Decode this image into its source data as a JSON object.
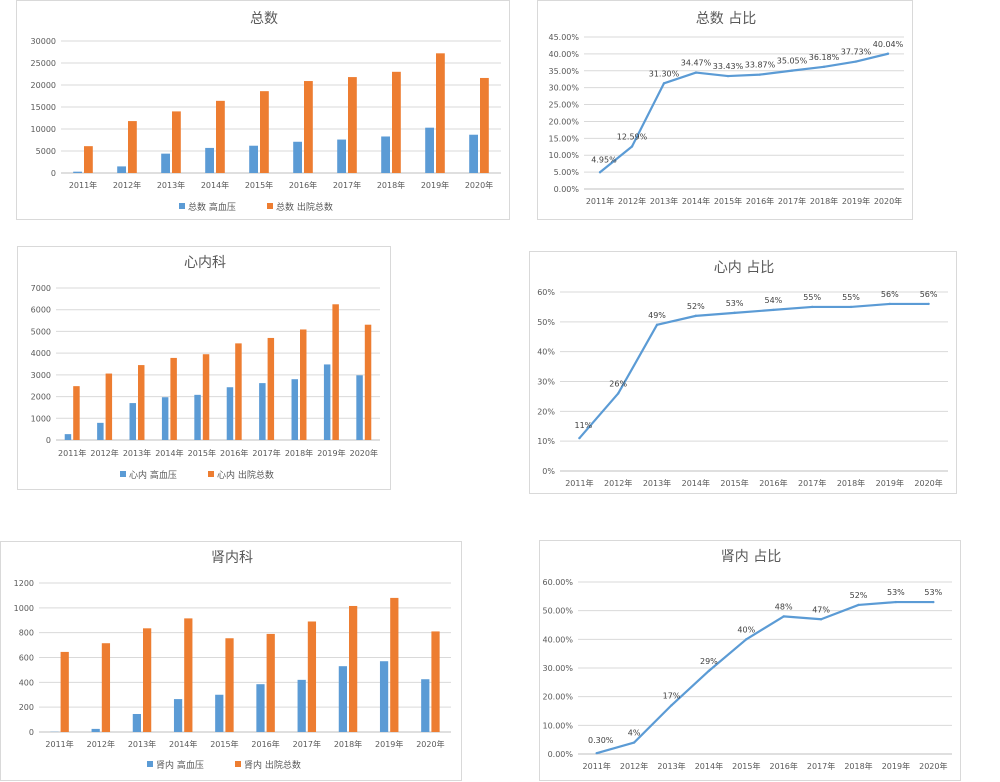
{
  "colors": {
    "blue": "#5b9bd5",
    "orange": "#ed7d31",
    "grid": "#d9d9d9",
    "axis": "#bfbfbf"
  },
  "chart_data": [
    {
      "id": "total-bar",
      "type": "bar",
      "title": "总数",
      "categories": [
        "2011年",
        "2012年",
        "2013年",
        "2014年",
        "2015年",
        "2016年",
        "2017年",
        "2018年",
        "2019年",
        "2020年"
      ],
      "series": [
        {
          "name": "总数 高血压",
          "values": [
            300,
            1500,
            4400,
            5700,
            6200,
            7100,
            7600,
            8300,
            10300,
            8700
          ]
        },
        {
          "name": "总数 出院总数",
          "values": [
            6100,
            11800,
            14000,
            16400,
            18600,
            20900,
            21800,
            23000,
            27200,
            21600
          ]
        }
      ],
      "ylim": [
        0,
        30000
      ],
      "yticks": [
        "0",
        "5000",
        "10000",
        "15000",
        "20000",
        "25000",
        "30000"
      ],
      "grid": true,
      "legend": "bottom"
    },
    {
      "id": "total-line",
      "type": "line",
      "title": "总数 占比",
      "categories": [
        "2011年",
        "2012年",
        "2013年",
        "2014年",
        "2015年",
        "2016年",
        "2017年",
        "2018年",
        "2019年",
        "2020年"
      ],
      "series": [
        {
          "values": [
            4.95,
            12.59,
            31.3,
            34.47,
            33.43,
            33.87,
            35.05,
            36.18,
            37.73,
            40.04
          ],
          "labels": [
            "4.95%",
            "12.59%",
            "31.30%",
            "34.47%",
            "33.43%",
            "33.87%",
            "35.05%",
            "36.18%",
            "37.73%",
            "40.04%"
          ]
        }
      ],
      "ylim": [
        0,
        45
      ],
      "yticks": [
        "0.00%",
        "5.00%",
        "10.00%",
        "15.00%",
        "20.00%",
        "25.00%",
        "30.00%",
        "35.00%",
        "40.00%",
        "45.00%"
      ],
      "grid": true
    },
    {
      "id": "cardio-bar",
      "type": "bar",
      "title": "心内科",
      "categories": [
        "2011年",
        "2012年",
        "2013年",
        "2014年",
        "2015年",
        "2016年",
        "2017年",
        "2018年",
        "2019年",
        "2020年"
      ],
      "series": [
        {
          "name": "心内 高血压",
          "values": [
            270,
            790,
            1700,
            1970,
            2080,
            2430,
            2620,
            2800,
            3480,
            2980
          ]
        },
        {
          "name": "心内 出院总数",
          "values": [
            2480,
            3060,
            3450,
            3780,
            3950,
            4450,
            4700,
            5090,
            6250,
            5310
          ]
        }
      ],
      "ylim": [
        0,
        7000
      ],
      "yticks": [
        "0",
        "1000",
        "2000",
        "3000",
        "4000",
        "5000",
        "6000",
        "7000"
      ],
      "grid": true,
      "legend": "bottom"
    },
    {
      "id": "cardio-line",
      "type": "line",
      "title": "心内 占比",
      "categories": [
        "2011年",
        "2012年",
        "2013年",
        "2014年",
        "2015年",
        "2016年",
        "2017年",
        "2018年",
        "2019年",
        "2020年"
      ],
      "series": [
        {
          "values": [
            11,
            26,
            49,
            52,
            53,
            54,
            55,
            55,
            56,
            56
          ],
          "labels": [
            "11%",
            "26%",
            "49%",
            "52%",
            "53%",
            "54%",
            "55%",
            "55%",
            "56%",
            "56%"
          ]
        }
      ],
      "ylim": [
        0,
        60
      ],
      "yticks": [
        "0%",
        "10%",
        "20%",
        "30%",
        "40%",
        "50%",
        "60%"
      ],
      "grid": true
    },
    {
      "id": "renal-bar",
      "type": "bar",
      "title": "肾内科",
      "categories": [
        "2011年",
        "2012年",
        "2013年",
        "2014年",
        "2015年",
        "2016年",
        "2017年",
        "2018年",
        "2019年",
        "2020年"
      ],
      "series": [
        {
          "name": "肾内 高血压",
          "values": [
            2,
            25,
            145,
            265,
            300,
            385,
            420,
            530,
            570,
            425
          ]
        },
        {
          "name": "肾内 出院总数",
          "values": [
            645,
            715,
            835,
            915,
            755,
            790,
            890,
            1015,
            1080,
            810
          ]
        }
      ],
      "ylim": [
        0,
        1200
      ],
      "yticks": [
        "0",
        "200",
        "400",
        "600",
        "800",
        "1000",
        "1200"
      ],
      "grid": true,
      "legend": "bottom"
    },
    {
      "id": "renal-line",
      "type": "line",
      "title": "肾内 占比",
      "categories": [
        "2011年",
        "2012年",
        "2013年",
        "2014年",
        "2015年",
        "2016年",
        "2017年",
        "2018年",
        "2019年",
        "2020年"
      ],
      "series": [
        {
          "values": [
            0.3,
            4,
            17,
            29,
            40,
            48,
            47,
            52,
            53,
            53
          ],
          "labels": [
            "0.30%",
            "4%",
            "17%",
            "29%",
            "40%",
            "48%",
            "47%",
            "52%",
            "53%",
            "53%"
          ]
        }
      ],
      "ylim": [
        0,
        60
      ],
      "yticks": [
        "0.00%",
        "10.00%",
        "20.00%",
        "30.00%",
        "40.00%",
        "50.00%",
        "60.00%"
      ],
      "grid": true
    }
  ]
}
